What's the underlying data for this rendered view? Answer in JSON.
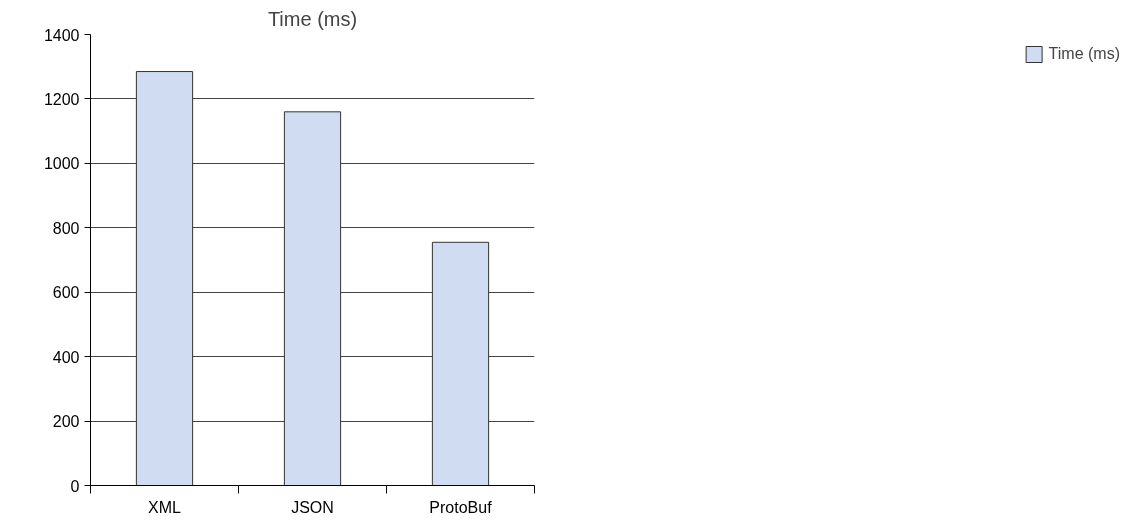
{
  "chart_data": {
    "type": "bar",
    "title": "Time (ms)",
    "categories": [
      "XML",
      "JSON",
      "ProtoBuf"
    ],
    "series": [
      {
        "name": "Time (ms)",
        "color": "#cfdcf2",
        "values": [
          1285,
          1160,
          755
        ]
      }
    ],
    "ylim": [
      0,
      1400
    ],
    "yticks": [
      0,
      200,
      400,
      600,
      800,
      1000,
      1200,
      1400
    ],
    "grid": "y",
    "legend": "right"
  }
}
